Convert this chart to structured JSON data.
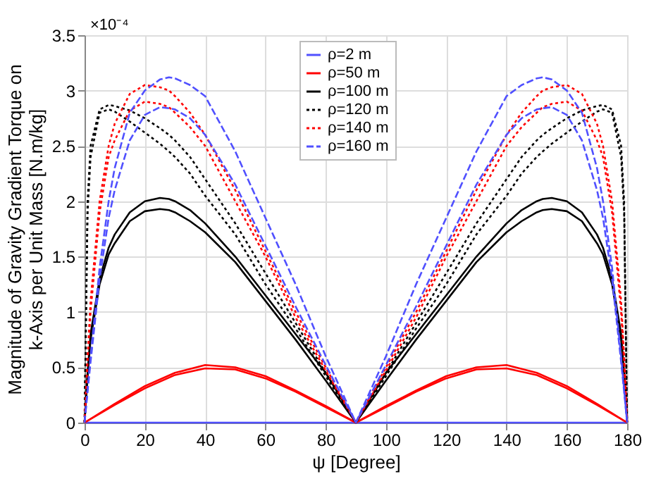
{
  "chart_data": {
    "type": "line",
    "xlabel": "ψ [Degree]",
    "ylabel": "Magnitude of Gravity Gradient Torque on\nk-Axis per Unit Mass [N.m/kg]",
    "annotations": [
      "×10⁻⁴"
    ],
    "xlim": [
      0,
      180
    ],
    "xticks": [
      0,
      20,
      40,
      60,
      80,
      100,
      120,
      140,
      160,
      180
    ],
    "ylim": [
      0,
      3.5
    ],
    "yticks": [
      0,
      0.5,
      1,
      1.5,
      2,
      2.5,
      3,
      3.5
    ],
    "grid": true,
    "legend": "top",
    "marker": "none",
    "series": [
      {
        "name": "ρ=2 m",
        "color": "#5050ff",
        "line_style": "solid",
        "x": [
          0,
          180
        ],
        "values": [
          0,
          0
        ]
      },
      {
        "name": "ρ=50 m",
        "color": "#ff0000",
        "line_style": "solid",
        "x": [
          0,
          10,
          20,
          30,
          40,
          50,
          60,
          70,
          80,
          90,
          100,
          110,
          120,
          130,
          140,
          150,
          160,
          170,
          180
        ],
        "values": [
          0,
          0.17,
          0.33,
          0.45,
          0.52,
          0.5,
          0.42,
          0.29,
          0.15,
          0,
          0.15,
          0.29,
          0.42,
          0.5,
          0.52,
          0.45,
          0.33,
          0.17,
          0
        ]
      },
      {
        "color": "#ff0000",
        "line_style": "solid",
        "x": [
          0,
          10,
          20,
          30,
          40,
          50,
          60,
          70,
          80,
          90,
          100,
          110,
          120,
          130,
          140,
          150,
          160,
          170,
          180
        ],
        "values": [
          0,
          0.16,
          0.31,
          0.43,
          0.49,
          0.48,
          0.4,
          0.28,
          0.14,
          0,
          0.14,
          0.28,
          0.4,
          0.48,
          0.49,
          0.43,
          0.31,
          0.16,
          0
        ]
      },
      {
        "name": "ρ=100 m",
        "color": "#000000",
        "line_style": "solid",
        "x": [
          0,
          1,
          2,
          5,
          8,
          10,
          15,
          20,
          25,
          28,
          30,
          35,
          40,
          50,
          60,
          70,
          80,
          90,
          100,
          110,
          120,
          130,
          140,
          145,
          150,
          152,
          155,
          160,
          165,
          170,
          172,
          175,
          178,
          179,
          180
        ],
        "values": [
          0,
          0.45,
          0.8,
          1.3,
          1.58,
          1.7,
          1.9,
          2.0,
          2.03,
          2.02,
          2.0,
          1.92,
          1.8,
          1.5,
          1.15,
          0.8,
          0.45,
          0,
          0.45,
          0.8,
          1.15,
          1.5,
          1.8,
          1.92,
          2.0,
          2.02,
          2.03,
          2.0,
          1.9,
          1.7,
          1.58,
          1.3,
          0.8,
          0.45,
          0
        ]
      },
      {
        "color": "#000000",
        "line_style": "solid",
        "x": [
          0,
          1,
          2,
          5,
          8,
          10,
          15,
          20,
          25,
          28,
          30,
          35,
          40,
          50,
          60,
          70,
          80,
          90,
          100,
          110,
          120,
          130,
          140,
          145,
          150,
          152,
          155,
          160,
          165,
          170,
          172,
          175,
          178,
          179,
          180
        ],
        "values": [
          0,
          0.42,
          0.75,
          1.25,
          1.52,
          1.62,
          1.82,
          1.91,
          1.93,
          1.92,
          1.9,
          1.82,
          1.72,
          1.45,
          1.1,
          0.75,
          0.38,
          0,
          0.38,
          0.75,
          1.1,
          1.45,
          1.72,
          1.82,
          1.9,
          1.92,
          1.93,
          1.91,
          1.82,
          1.62,
          1.52,
          1.25,
          0.75,
          0.42,
          0
        ]
      },
      {
        "name": "ρ=120 m",
        "color": "#000000",
        "line_style": "dotted",
        "x": [
          0,
          1,
          2,
          5,
          8,
          10,
          15,
          20,
          25,
          28,
          30,
          35,
          40,
          50,
          60,
          70,
          80,
          90,
          100,
          110,
          120,
          130,
          140,
          145,
          150,
          152,
          155,
          160,
          165,
          170,
          172,
          175,
          178,
          179,
          180
        ],
        "values": [
          0,
          2.0,
          2.5,
          2.83,
          2.87,
          2.86,
          2.82,
          2.75,
          2.66,
          2.6,
          2.55,
          2.4,
          2.2,
          1.8,
          1.35,
          0.9,
          0.45,
          0,
          0.45,
          0.9,
          1.35,
          1.8,
          2.2,
          2.4,
          2.55,
          2.6,
          2.66,
          2.75,
          2.82,
          2.86,
          2.87,
          2.83,
          2.5,
          2.0,
          0
        ]
      },
      {
        "color": "#000000",
        "line_style": "dotted",
        "x": [
          0,
          1,
          2,
          5,
          8,
          10,
          15,
          20,
          25,
          28,
          30,
          35,
          40,
          50,
          60,
          70,
          80,
          90,
          100,
          110,
          120,
          130,
          140,
          145,
          150,
          152,
          155,
          160,
          165,
          170,
          172,
          175,
          178,
          179,
          180
        ],
        "values": [
          0,
          1.9,
          2.4,
          2.8,
          2.83,
          2.81,
          2.72,
          2.62,
          2.52,
          2.45,
          2.4,
          2.25,
          2.05,
          1.7,
          1.25,
          0.85,
          0.42,
          0,
          0.42,
          0.85,
          1.25,
          1.7,
          2.05,
          2.25,
          2.4,
          2.45,
          2.52,
          2.62,
          2.72,
          2.81,
          2.83,
          2.8,
          2.4,
          1.9,
          0
        ]
      },
      {
        "name": "ρ=140 m",
        "color": "#ff0000",
        "line_style": "dotted",
        "x": [
          0,
          1,
          2,
          5,
          8,
          10,
          15,
          20,
          25,
          28,
          30,
          35,
          40,
          50,
          60,
          70,
          80,
          90,
          100,
          110,
          120,
          130,
          140,
          145,
          150,
          152,
          155,
          160,
          165,
          170,
          172,
          175,
          178,
          179,
          180
        ],
        "values": [
          0,
          0.6,
          1.1,
          2.0,
          2.5,
          2.7,
          2.97,
          3.05,
          3.03,
          3.0,
          2.95,
          2.8,
          2.6,
          2.1,
          1.55,
          1.0,
          0.5,
          0,
          0.5,
          1.0,
          1.55,
          2.1,
          2.6,
          2.8,
          2.95,
          3.0,
          3.03,
          3.05,
          2.97,
          2.7,
          2.5,
          2.0,
          1.1,
          0.6,
          0
        ]
      },
      {
        "color": "#ff0000",
        "line_style": "dotted",
        "x": [
          0,
          1,
          2,
          5,
          8,
          10,
          15,
          20,
          25,
          28,
          30,
          35,
          40,
          50,
          60,
          70,
          80,
          90,
          100,
          110,
          120,
          130,
          140,
          145,
          150,
          152,
          155,
          160,
          165,
          170,
          172,
          175,
          178,
          179,
          180
        ],
        "values": [
          0,
          0.55,
          1.0,
          1.9,
          2.4,
          2.55,
          2.82,
          2.9,
          2.88,
          2.85,
          2.8,
          2.67,
          2.5,
          2.0,
          1.5,
          0.95,
          0.47,
          0,
          0.47,
          0.95,
          1.5,
          2.0,
          2.5,
          2.67,
          2.8,
          2.85,
          2.88,
          2.9,
          2.82,
          2.55,
          2.4,
          1.9,
          1.0,
          0.55,
          0
        ]
      },
      {
        "name": "ρ=160 m",
        "color": "#5050ff",
        "line_style": "dashed",
        "x": [
          0,
          1,
          2,
          5,
          8,
          10,
          15,
          20,
          25,
          28,
          30,
          35,
          40,
          50,
          60,
          70,
          80,
          90,
          100,
          110,
          120,
          130,
          140,
          145,
          150,
          152,
          155,
          160,
          165,
          170,
          172,
          175,
          178,
          179,
          180
        ],
        "values": [
          0,
          0.3,
          0.6,
          1.4,
          2.0,
          2.3,
          2.8,
          3.0,
          3.1,
          3.12,
          3.11,
          3.05,
          2.95,
          2.45,
          1.85,
          1.25,
          0.6,
          0,
          0.6,
          1.25,
          1.85,
          2.45,
          2.95,
          3.05,
          3.11,
          3.12,
          3.1,
          3.0,
          2.8,
          2.3,
          2.0,
          1.4,
          0.6,
          0.3,
          0
        ]
      },
      {
        "color": "#5050ff",
        "line_style": "dashed",
        "x": [
          0,
          1,
          2,
          5,
          8,
          10,
          15,
          20,
          25,
          28,
          30,
          35,
          40,
          50,
          60,
          70,
          80,
          90,
          100,
          110,
          120,
          130,
          140,
          145,
          150,
          152,
          155,
          160,
          165,
          170,
          172,
          175,
          178,
          179,
          180
        ],
        "values": [
          0,
          0.28,
          0.55,
          1.3,
          1.85,
          2.1,
          2.55,
          2.78,
          2.85,
          2.84,
          2.83,
          2.75,
          2.6,
          2.15,
          1.6,
          1.05,
          0.52,
          0,
          0.52,
          1.05,
          1.6,
          2.15,
          2.6,
          2.75,
          2.83,
          2.84,
          2.85,
          2.78,
          2.55,
          2.1,
          1.85,
          1.3,
          0.55,
          0.28,
          0
        ]
      }
    ]
  }
}
